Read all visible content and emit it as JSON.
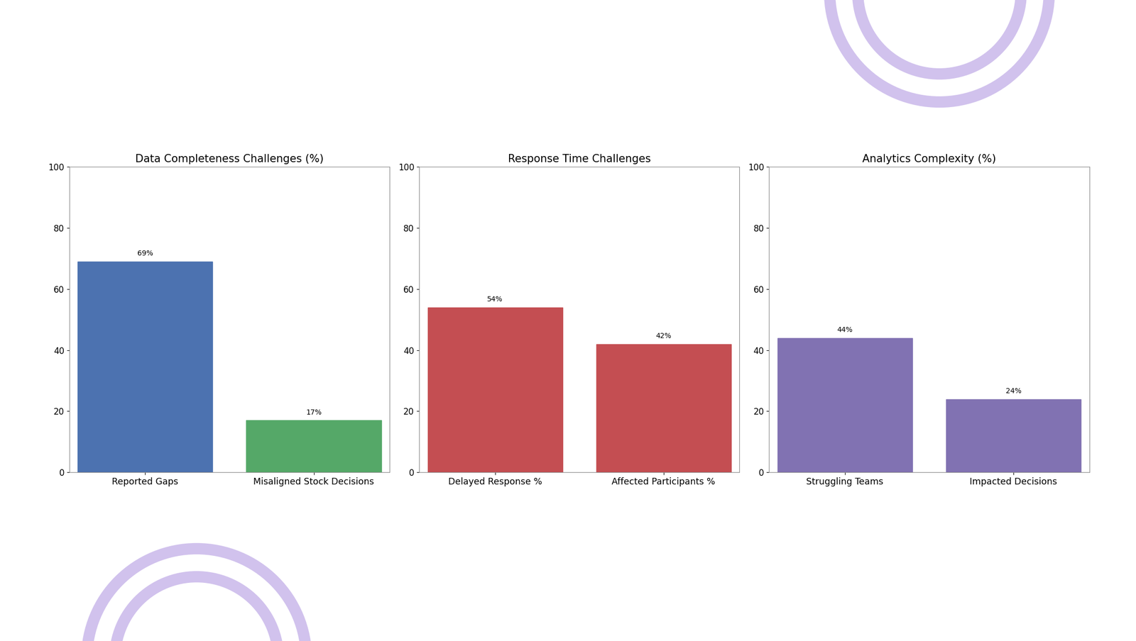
{
  "chart_data": [
    {
      "type": "bar",
      "title": "Data Completeness Challenges (%)",
      "categories": [
        "Reported Gaps",
        "Misaligned Stock Decisions"
      ],
      "values": [
        69,
        17
      ],
      "value_labels": [
        "69%",
        "17%"
      ],
      "colors": [
        "#4c72b0",
        "#55a868"
      ],
      "ylim": [
        0,
        100
      ],
      "yticks": [
        0,
        20,
        40,
        60,
        80,
        100
      ],
      "data_labels": true,
      "grid": false
    },
    {
      "type": "bar",
      "title": "Response Time Challenges",
      "categories": [
        "Delayed Response %",
        "Affected Participants %"
      ],
      "values": [
        54,
        42
      ],
      "value_labels": [
        "54%",
        "42%"
      ],
      "colors": [
        "#c44e52",
        "#c44e52"
      ],
      "ylim": [
        0,
        100
      ],
      "yticks": [
        0,
        20,
        40,
        60,
        80,
        100
      ],
      "data_labels": true,
      "grid": false
    },
    {
      "type": "bar",
      "title": "Analytics Complexity (%)",
      "categories": [
        "Struggling Teams",
        "Impacted Decisions"
      ],
      "values": [
        44,
        24
      ],
      "value_labels": [
        "44%",
        "24%"
      ],
      "colors": [
        "#8172b2",
        "#8172b2"
      ],
      "ylim": [
        0,
        100
      ],
      "yticks": [
        0,
        20,
        40,
        60,
        80,
        100
      ],
      "data_labels": true,
      "grid": false
    }
  ]
}
